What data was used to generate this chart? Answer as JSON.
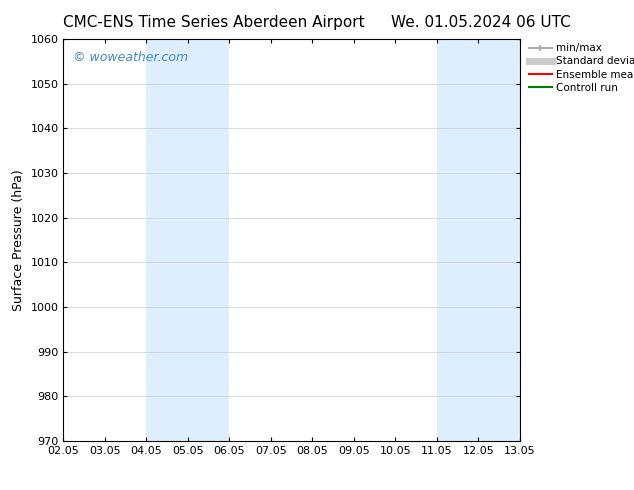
{
  "title_left": "CMC-ENS Time Series Aberdeen Airport",
  "title_right": "We. 01.05.2024 06 UTC",
  "ylabel": "Surface Pressure (hPa)",
  "ylim": [
    970,
    1060
  ],
  "yticks": [
    970,
    980,
    990,
    1000,
    1010,
    1020,
    1030,
    1040,
    1050,
    1060
  ],
  "xtick_labels": [
    "02.05",
    "03.05",
    "04.05",
    "05.05",
    "06.05",
    "07.05",
    "08.05",
    "09.05",
    "10.05",
    "11.05",
    "12.05",
    "13.05"
  ],
  "xtick_positions": [
    0,
    1,
    2,
    3,
    4,
    5,
    6,
    7,
    8,
    9,
    10,
    11
  ],
  "shaded_bands": [
    {
      "x_start": 2,
      "x_end": 4,
      "color": "#ddeeff"
    },
    {
      "x_start": 9,
      "x_end": 11,
      "color": "#ddeeff"
    }
  ],
  "watermark_text": "© woweather.com",
  "watermark_color": "#4488cc",
  "legend_items": [
    {
      "label": "min/max",
      "color": "#aaaaaa",
      "lw": 1.5
    },
    {
      "label": "Standard deviation",
      "color": "#cccccc",
      "lw": 5
    },
    {
      "label": "Ensemble mean run",
      "color": "red",
      "lw": 1.5
    },
    {
      "label": "Controll run",
      "color": "green",
      "lw": 1.5
    }
  ],
  "bg_color": "#ffffff",
  "grid_color": "#cccccc",
  "title_fontsize": 11,
  "tick_fontsize": 8,
  "ylabel_fontsize": 9
}
